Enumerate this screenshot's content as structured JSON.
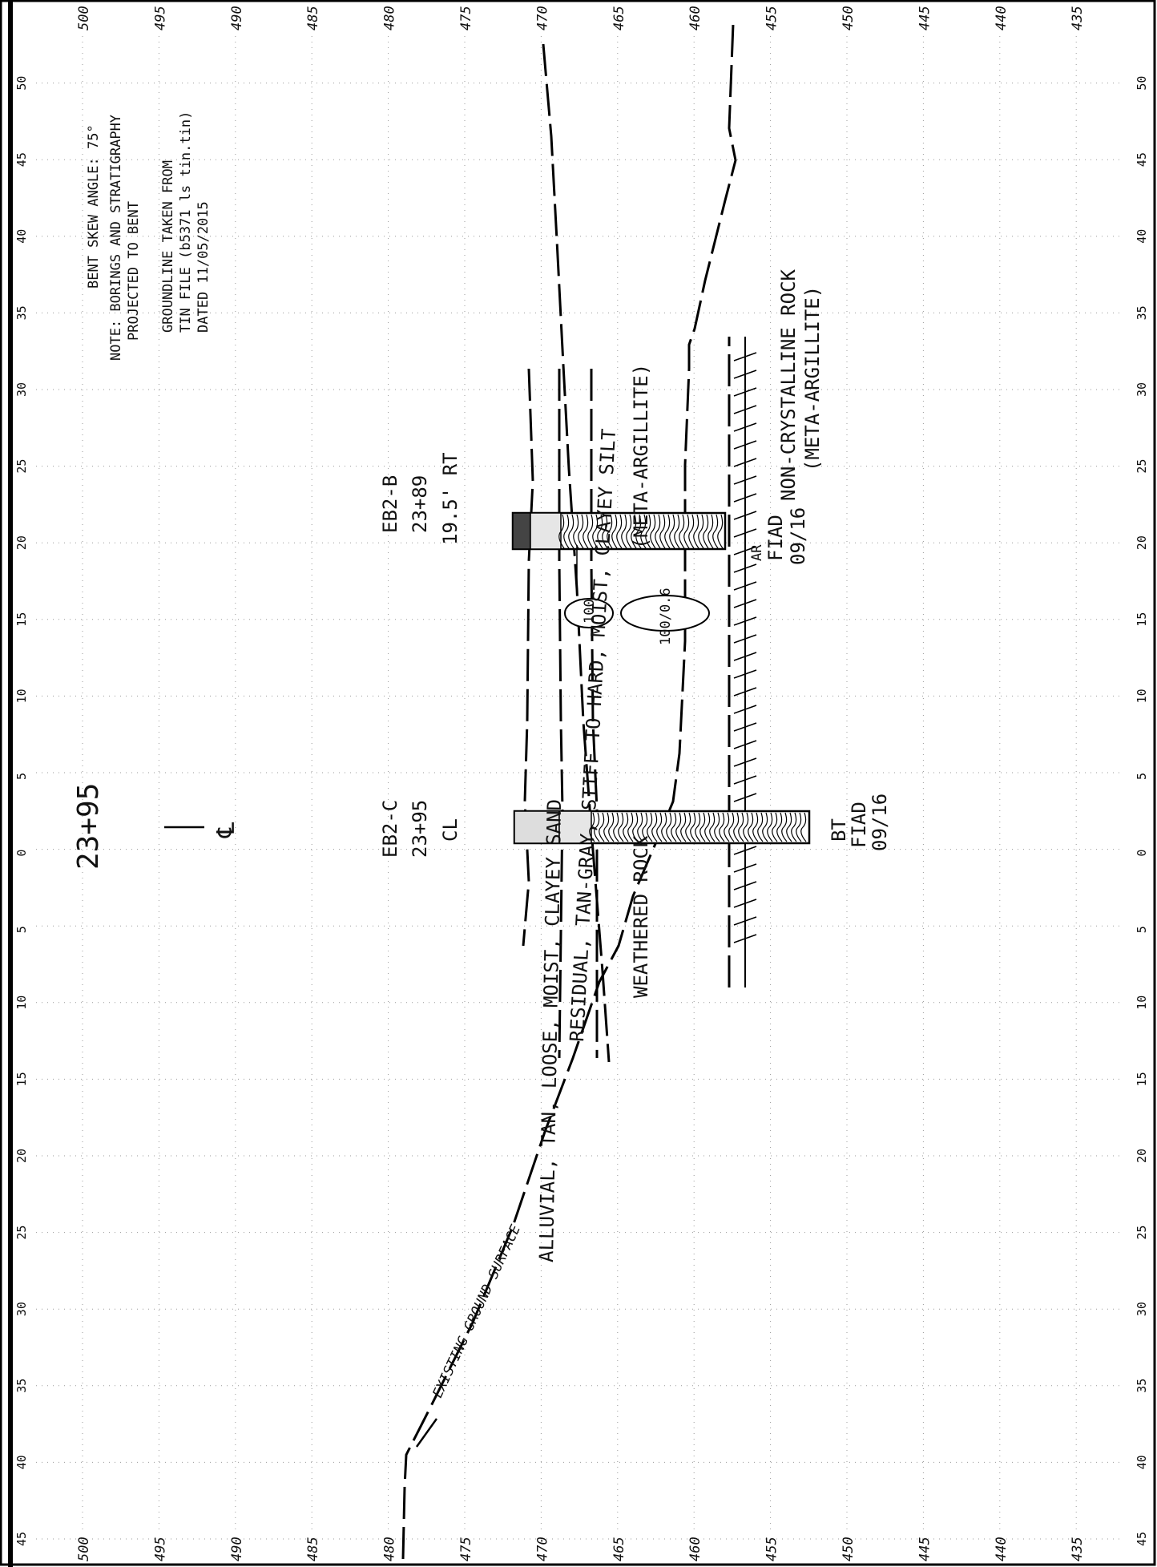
{
  "station_title": "23+95",
  "centerline_symbol": "℄",
  "notes": {
    "line1": "BENT SKEW ANGLE: 75°",
    "line2": "NOTE: BORINGS AND STRATIGRAPHY",
    "line3": "PROJECTED TO BENT",
    "line4": "GROUNDLINE TAKEN FROM",
    "line5": "TIN FILE (b5371 ls tin.tin)",
    "line6": "DATED 11/05/2015"
  },
  "offset_ticks_left": [
    "45",
    "40",
    "35",
    "30",
    "25",
    "20",
    "15",
    "10",
    "5",
    "0",
    "5",
    "10",
    "15",
    "20",
    "25",
    "30",
    "35",
    "40",
    "45",
    "50"
  ],
  "offset_ticks_right": [
    "45",
    "40",
    "35",
    "30",
    "25",
    "20",
    "15",
    "10",
    "5",
    "0",
    "5",
    "10",
    "15",
    "20",
    "25",
    "30",
    "35",
    "40",
    "45",
    "50"
  ],
  "elevation_ticks_top": [
    "500",
    "495",
    "490",
    "485",
    "480",
    "475",
    "470",
    "465",
    "460",
    "455",
    "450",
    "445",
    "440",
    "435"
  ],
  "elevation_ticks_bottom": [
    "500",
    "495",
    "490",
    "485",
    "480",
    "475",
    "470",
    "465",
    "460",
    "455",
    "450",
    "445",
    "440",
    "435"
  ],
  "borings": {
    "b": {
      "id": "EB2-B",
      "station": "23+89",
      "offset": "19.5' RT"
    },
    "c": {
      "id": "EB2-C",
      "station": "23+95",
      "offset": "CL"
    }
  },
  "ground_label": "EXISTING GROUND SURFACE",
  "strata": {
    "alluvial": "ALLUVIAL, TAN, LOOSE, MOIST, CLAYEY SAND",
    "residual": "RESIDUAL, TAN-GRAY, STIFF TO HARD, MOIST, CLAYEY SILT",
    "weathered": "WEATHERED ROCK",
    "meta": "(META-ARGILLITE)",
    "ncr1": "NON-CRYSTALLINE ROCK",
    "ncr2": "(META-ARGILLITE)"
  },
  "boring_b_end": {
    "code": "AR",
    "fiad": "FIAD",
    "date": "09/16"
  },
  "boring_c_end": {
    "code": "BT",
    "fiad": "FIAD",
    "date": "09/16"
  },
  "blow_counts": {
    "first": "100",
    "second": "100/0.6"
  }
}
